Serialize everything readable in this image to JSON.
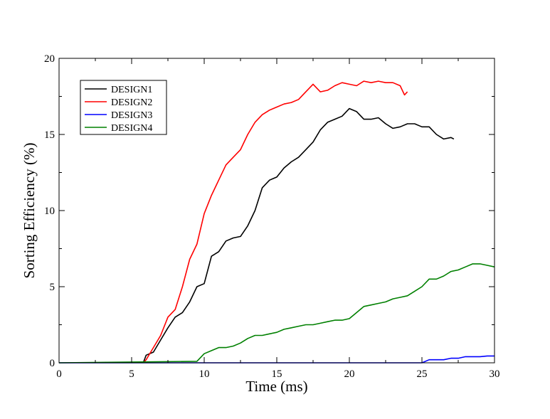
{
  "chart_data": {
    "type": "line",
    "title": "",
    "xlabel": "Time (ms)",
    "ylabel": "Sorting Efficiency (%)",
    "xlim": [
      0,
      30
    ],
    "ylim": [
      0,
      20
    ],
    "xticks": [
      0,
      5,
      10,
      15,
      20,
      25,
      30
    ],
    "yticks": [
      0,
      5,
      10,
      15,
      20
    ],
    "xtick_labels": [
      "0",
      "5",
      "10",
      "15",
      "20",
      "25",
      "30"
    ],
    "ytick_labels": [
      "0",
      "5",
      "10",
      "15",
      "20"
    ],
    "grid": false,
    "legend_position": "top-left",
    "series": [
      {
        "name": "DESIGN1",
        "color": "#000000",
        "x": [
          5.8,
          6.0,
          6.5,
          7.0,
          7.5,
          8.0,
          8.5,
          9.0,
          9.5,
          10.0,
          10.5,
          11.0,
          11.5,
          12.0,
          12.5,
          13.0,
          13.5,
          14.0,
          14.5,
          15.0,
          15.5,
          16.0,
          16.5,
          17.0,
          17.5,
          18.0,
          18.5,
          19.0,
          19.5,
          20.0,
          20.5,
          21.0,
          21.5,
          22.0,
          22.5,
          23.0,
          23.5,
          24.0,
          24.5,
          25.0,
          25.5,
          26.0,
          26.5,
          27.0,
          27.2
        ],
        "y": [
          0.0,
          0.5,
          0.7,
          1.5,
          2.3,
          3.0,
          3.3,
          4.0,
          5.0,
          5.2,
          7.0,
          7.3,
          8.0,
          8.2,
          8.3,
          9.0,
          10.0,
          11.5,
          12.0,
          12.2,
          12.8,
          13.2,
          13.5,
          14.0,
          14.5,
          15.3,
          15.8,
          16.0,
          16.2,
          16.7,
          16.5,
          16.0,
          16.0,
          16.1,
          15.7,
          15.4,
          15.5,
          15.7,
          15.7,
          15.5,
          15.5,
          15.0,
          14.7,
          14.8,
          14.7
        ]
      },
      {
        "name": "DESIGN2",
        "color": "#ff0000",
        "x": [
          5.8,
          6.0,
          6.5,
          7.0,
          7.5,
          8.0,
          8.5,
          9.0,
          9.5,
          10.0,
          10.5,
          11.0,
          11.5,
          12.0,
          12.5,
          13.0,
          13.5,
          14.0,
          14.5,
          15.0,
          15.5,
          16.0,
          16.5,
          17.0,
          17.5,
          18.0,
          18.5,
          19.0,
          19.5,
          20.0,
          20.5,
          21.0,
          21.5,
          22.0,
          22.5,
          23.0,
          23.5,
          23.8,
          24.0
        ],
        "y": [
          0.0,
          0.2,
          1.0,
          1.8,
          3.0,
          3.5,
          5.0,
          6.8,
          7.8,
          9.8,
          11.0,
          12.0,
          13.0,
          13.5,
          14.0,
          15.0,
          15.8,
          16.3,
          16.6,
          16.8,
          17.0,
          17.1,
          17.3,
          17.8,
          18.3,
          17.8,
          17.9,
          18.2,
          18.4,
          18.3,
          18.2,
          18.5,
          18.4,
          18.5,
          18.4,
          18.4,
          18.2,
          17.6,
          17.8
        ]
      },
      {
        "name": "DESIGN3",
        "color": "#0000ff",
        "x": [
          0,
          25.0,
          25.5,
          26.0,
          26.5,
          27.0,
          27.5,
          28.0,
          28.5,
          29.0,
          29.5,
          30.0
        ],
        "y": [
          0.0,
          0.0,
          0.2,
          0.2,
          0.2,
          0.3,
          0.3,
          0.4,
          0.4,
          0.4,
          0.45,
          0.45
        ]
      },
      {
        "name": "DESIGN4",
        "color": "#008000",
        "x": [
          0,
          9.5,
          10.0,
          10.5,
          11.0,
          11.5,
          12.0,
          12.5,
          13.0,
          13.5,
          14.0,
          14.5,
          15.0,
          15.5,
          16.0,
          16.5,
          17.0,
          17.5,
          18.0,
          18.5,
          19.0,
          19.5,
          20.0,
          20.5,
          21.0,
          21.5,
          22.0,
          22.5,
          23.0,
          23.5,
          24.0,
          24.5,
          25.0,
          25.5,
          26.0,
          26.5,
          27.0,
          27.5,
          28.0,
          28.5,
          29.0,
          29.5,
          30.0
        ],
        "y": [
          0.0,
          0.1,
          0.6,
          0.8,
          1.0,
          1.0,
          1.1,
          1.3,
          1.6,
          1.8,
          1.8,
          1.9,
          2.0,
          2.2,
          2.3,
          2.4,
          2.5,
          2.5,
          2.6,
          2.7,
          2.8,
          2.8,
          2.9,
          3.3,
          3.7,
          3.8,
          3.9,
          4.0,
          4.2,
          4.3,
          4.4,
          4.7,
          5.0,
          5.5,
          5.5,
          5.7,
          6.0,
          6.1,
          6.3,
          6.5,
          6.5,
          6.4,
          6.3
        ]
      }
    ]
  }
}
